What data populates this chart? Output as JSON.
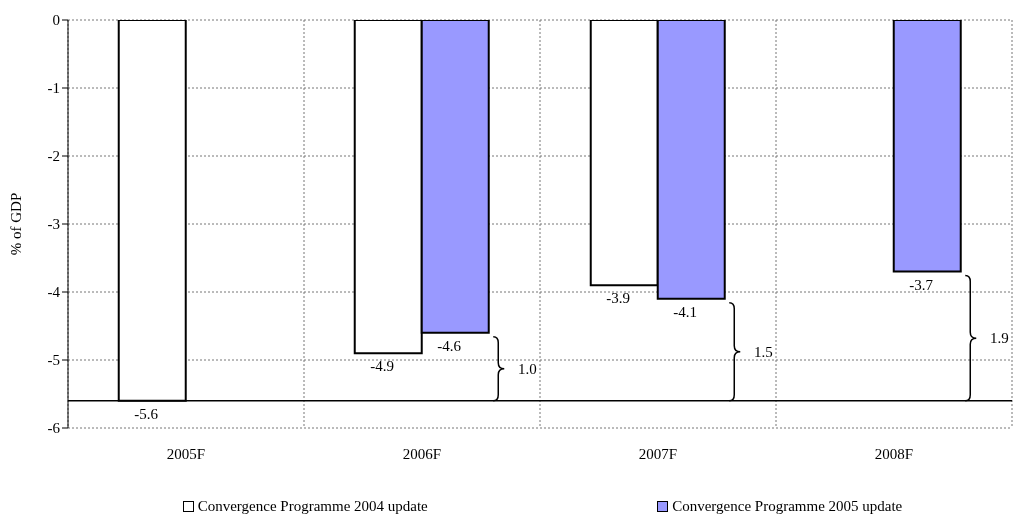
{
  "chart_data": {
    "type": "bar",
    "ylabel": "% of GDP",
    "categories": [
      "2005F",
      "2006F",
      "2007F",
      "2008F"
    ],
    "series": [
      {
        "name": "Convergence Programme 2004 update",
        "color": "#ffffff",
        "values": [
          -5.6,
          -4.9,
          -3.9,
          null
        ]
      },
      {
        "name": "Convergence Programme 2005 update",
        "color": "#9999ff",
        "values": [
          null,
          -4.6,
          -4.1,
          -3.7
        ]
      }
    ],
    "ylim": [
      -6,
      0
    ],
    "yticks": [
      -6,
      -5,
      -4,
      -3,
      -2,
      -1,
      0
    ],
    "grid": true,
    "legend": "bottom",
    "data_labels": true,
    "ref_lines": [
      {
        "axis": "y",
        "value": -5.6
      }
    ],
    "annotations": [
      "1.0",
      "1.5",
      "1.9"
    ]
  }
}
